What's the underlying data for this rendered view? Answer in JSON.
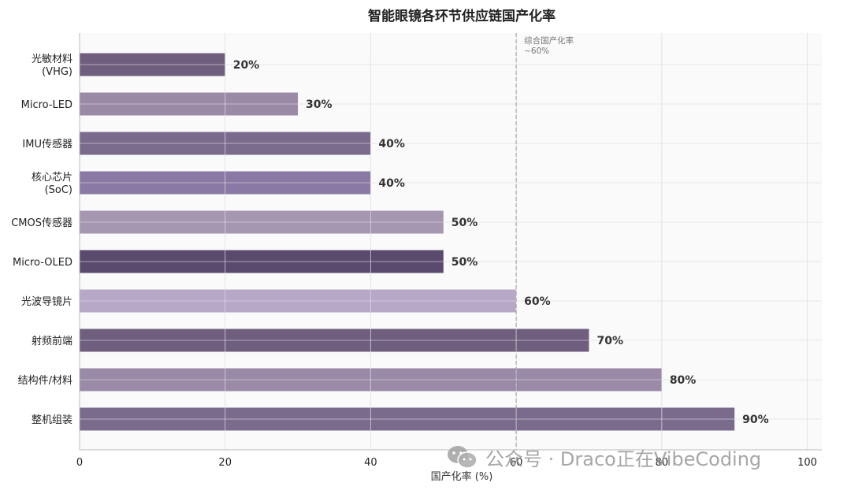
{
  "chart_data": {
    "type": "bar",
    "orientation": "horizontal",
    "title": "智能眼镜各环节供应链国产化率",
    "xlabel": "国产化率 (%)",
    "ylabel": "",
    "xlim": [
      0,
      102
    ],
    "xticks": [
      0,
      20,
      40,
      60,
      80,
      100
    ],
    "grid": true,
    "categories": [
      "光敏材料\n(VHG)",
      "Micro-LED",
      "IMU传感器",
      "核心芯片\n(SoC)",
      "CMOS传感器",
      "Micro-OLED",
      "光波导镜片",
      "射频前端",
      "结构件/材料",
      "整机组装"
    ],
    "values": [
      20,
      30,
      40,
      40,
      50,
      50,
      60,
      70,
      80,
      90
    ],
    "value_labels": [
      "20%",
      "30%",
      "40%",
      "40%",
      "50%",
      "50%",
      "60%",
      "70%",
      "80%",
      "90%"
    ],
    "colors": [
      "#6f5e7e",
      "#9a8aa8",
      "#7a6b8d",
      "#8a78a5",
      "#a596b2",
      "#5a4a6e",
      "#b8a8c8",
      "#6f5e7e",
      "#9a8aa8",
      "#7a6b8d"
    ],
    "reference_line": {
      "x": 60,
      "label_line1": "综合国产化率",
      "label_line2": "~60%"
    }
  },
  "watermark": {
    "text": "公众号 · Draco正在VibeCoding",
    "icon": "wechat-icon"
  }
}
